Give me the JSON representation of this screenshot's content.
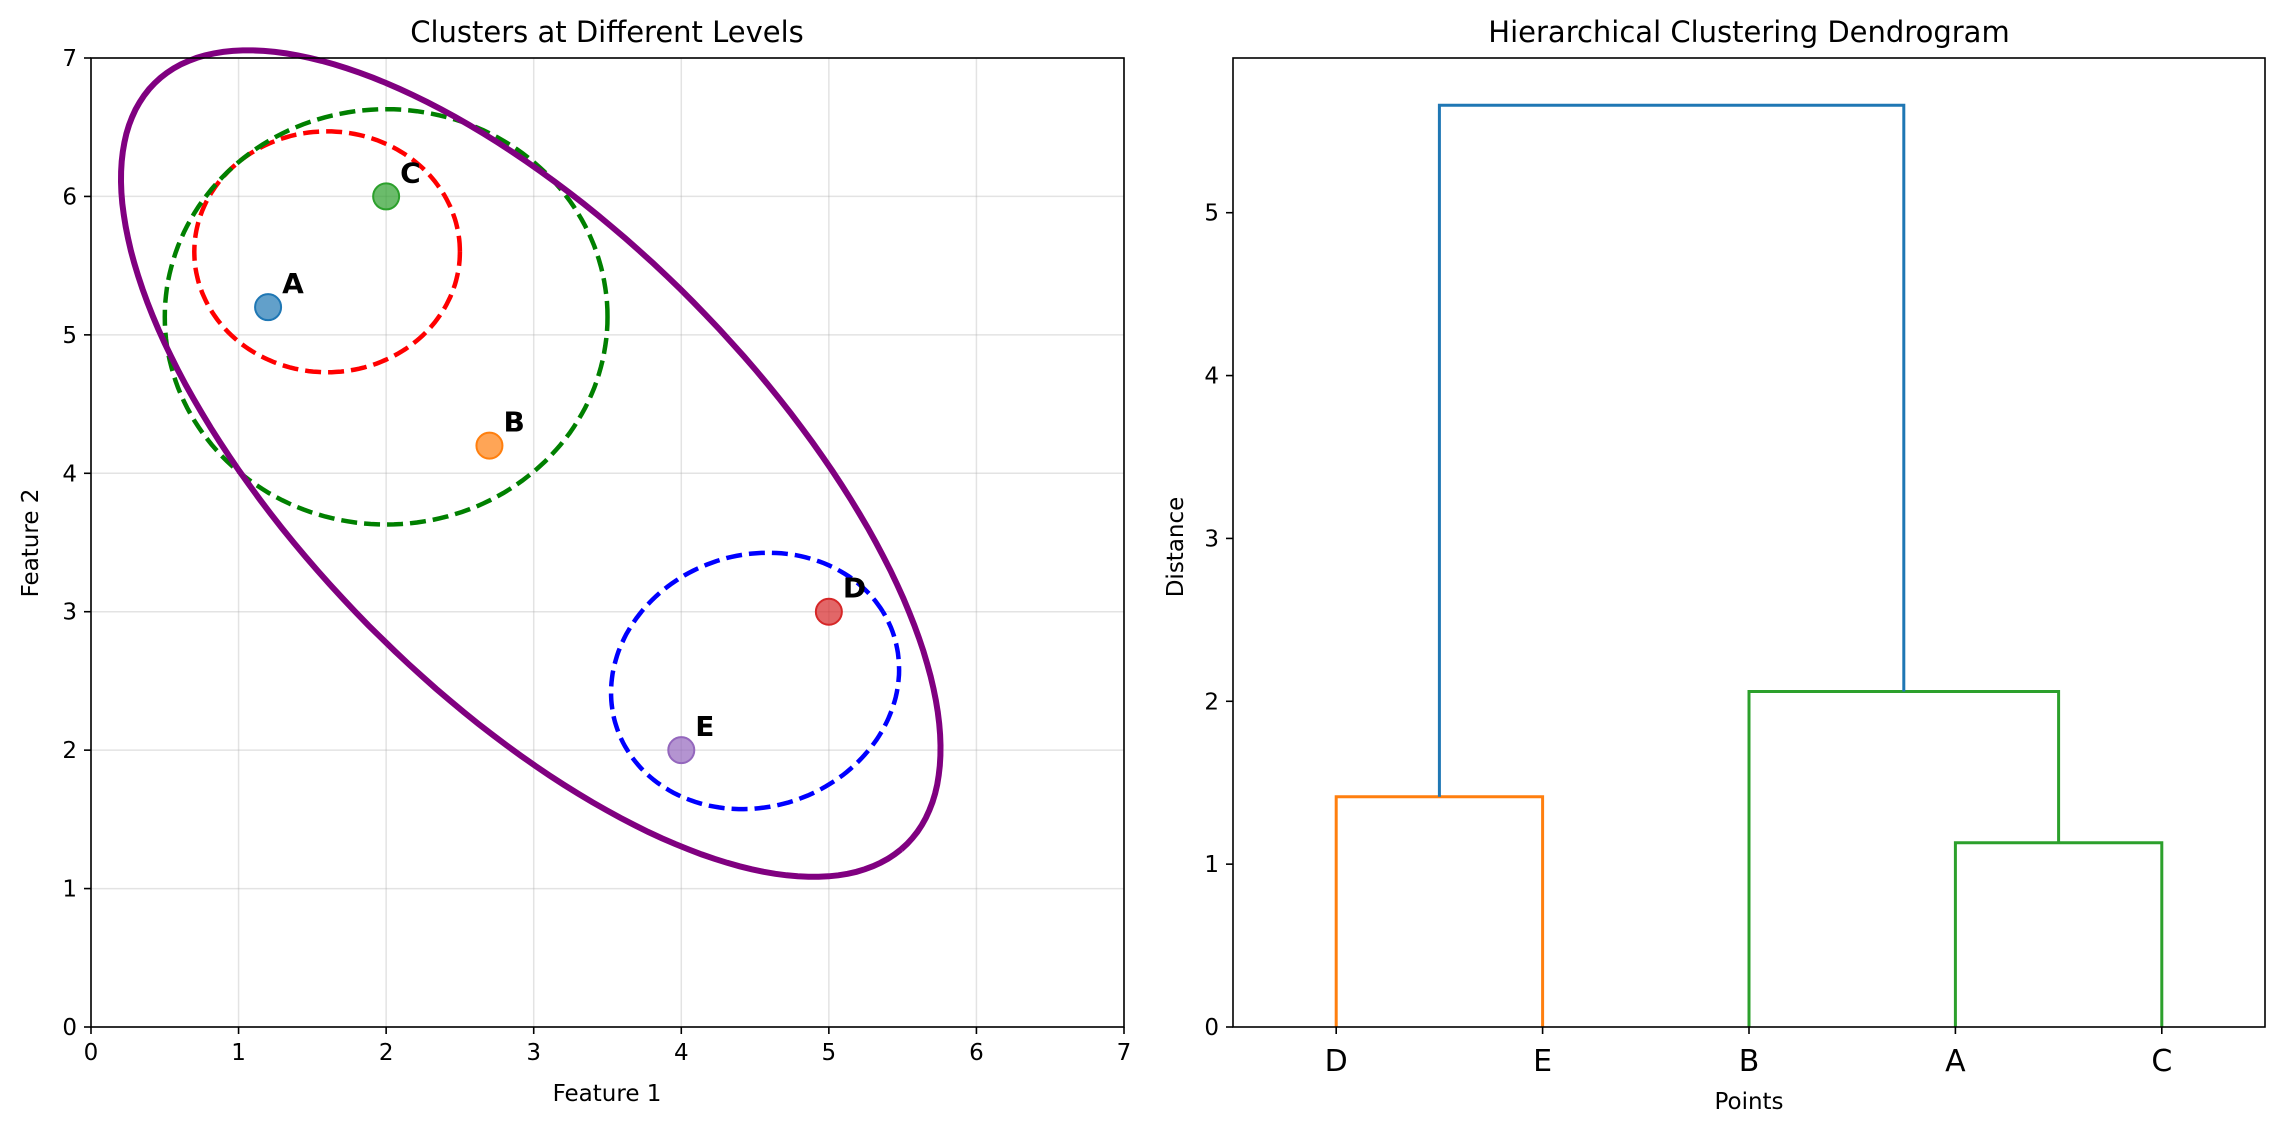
{
  "chart_data": [
    {
      "type": "scatter",
      "title": "Clusters at Different Levels",
      "xlabel": "Feature 1",
      "ylabel": "Feature 2",
      "xlim": [
        0,
        7
      ],
      "ylim": [
        0,
        7
      ],
      "xticks": [
        0,
        1,
        2,
        3,
        4,
        5,
        6,
        7
      ],
      "yticks": [
        0,
        1,
        2,
        3,
        4,
        5,
        6,
        7
      ],
      "grid": true,
      "points": [
        {
          "label": "A",
          "x": 1.2,
          "y": 5.2,
          "color": "#1f77b4"
        },
        {
          "label": "B",
          "x": 2.7,
          "y": 4.2,
          "color": "#ff7f0e"
        },
        {
          "label": "C",
          "x": 2.0,
          "y": 6.0,
          "color": "#2ca02c"
        },
        {
          "label": "D",
          "x": 5.0,
          "y": 3.0,
          "color": "#d62728"
        },
        {
          "label": "E",
          "x": 4.0,
          "y": 2.0,
          "color": "#9467bd"
        }
      ],
      "cluster_outlines": [
        {
          "members": [
            "A",
            "C"
          ],
          "center": [
            1.6,
            5.6
          ],
          "rx": 0.9,
          "ry": 0.87,
          "angle_deg": 0,
          "color": "#ff0000",
          "style": "dashed"
        },
        {
          "members": [
            "A",
            "B",
            "C"
          ],
          "center": [
            2.0,
            5.13
          ],
          "rx": 1.5,
          "ry": 1.5,
          "angle_deg": 0,
          "color": "#008000",
          "style": "dashed"
        },
        {
          "members": [
            "D",
            "E"
          ],
          "center": [
            4.5,
            2.5
          ],
          "rx": 1.0,
          "ry": 0.9,
          "angle_deg": 30,
          "color": "#0000ff",
          "style": "dashed"
        },
        {
          "members": [
            "A",
            "B",
            "C",
            "D",
            "E"
          ],
          "center": [
            2.98,
            4.07
          ],
          "rx": 3.75,
          "ry": 1.6,
          "angle_deg": -48,
          "color": "#800080",
          "style": "solid"
        }
      ]
    },
    {
      "type": "dendrogram",
      "title": "Hierarchical Clustering Dendrogram",
      "xlabel": "Points",
      "ylabel": "Distance",
      "leaves": [
        "D",
        "E",
        "B",
        "A",
        "C"
      ],
      "ylim": [
        0,
        5.95
      ],
      "yticks": [
        0,
        1,
        2,
        3,
        4,
        5
      ],
      "merges": [
        {
          "left": "D",
          "right": "E",
          "height": 1.414,
          "color": "#ff7f0e"
        },
        {
          "left": "A",
          "right": "C",
          "height": 1.131,
          "color": "#2ca02c"
        },
        {
          "left": "B",
          "right": "AC",
          "height": 2.06,
          "color": "#2ca02c"
        },
        {
          "left": "DE",
          "right": "BAC",
          "height": 5.66,
          "color": "#1f77b4"
        }
      ]
    }
  ]
}
